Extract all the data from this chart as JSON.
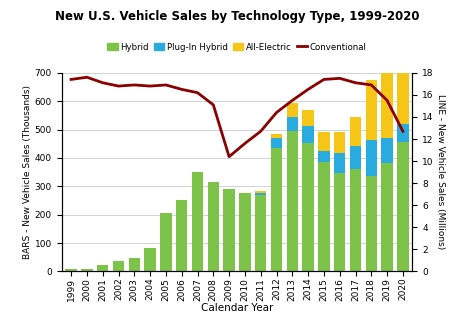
{
  "years": [
    1999,
    2000,
    2001,
    2002,
    2003,
    2004,
    2005,
    2006,
    2007,
    2008,
    2009,
    2010,
    2011,
    2012,
    2013,
    2014,
    2015,
    2016,
    2017,
    2018,
    2019,
    2020
  ],
  "hybrid": [
    9,
    9,
    21,
    35,
    47,
    84,
    205,
    250,
    350,
    315,
    290,
    275,
    268,
    434,
    495,
    452,
    384,
    346,
    360,
    338,
    381,
    456
  ],
  "plugin_hybrid": [
    0,
    0,
    0,
    0,
    0,
    0,
    0,
    0,
    0,
    0,
    0,
    0,
    7,
    38,
    49,
    59,
    42,
    72,
    83,
    125,
    88,
    65
  ],
  "all_electric": [
    0,
    0,
    0,
    0,
    0,
    0,
    0,
    0,
    0,
    0,
    0,
    0,
    10,
    14,
    48,
    57,
    66,
    75,
    103,
    210,
    236,
    240
  ],
  "conventional": [
    17.4,
    17.6,
    17.1,
    16.8,
    16.9,
    16.8,
    16.9,
    16.5,
    16.2,
    15.1,
    10.4,
    11.6,
    12.7,
    14.4,
    15.5,
    16.5,
    17.4,
    17.5,
    17.1,
    16.9,
    15.5,
    12.7
  ],
  "title": "New U.S. Vehicle Sales by Technology Type, 1999-2020",
  "ylabel_left": "BARS - New Vehicle Sales (Thousands)",
  "ylabel_right": "LINE - New Vehicle Sales (Millions)",
  "xlabel": "Calendar Year",
  "ylim_left": [
    0,
    700
  ],
  "ylim_right": [
    0,
    18
  ],
  "yticks_left": [
    0,
    100,
    200,
    300,
    400,
    500,
    600,
    700
  ],
  "yticks_right": [
    0,
    2,
    4,
    6,
    8,
    10,
    12,
    14,
    16,
    18
  ],
  "color_hybrid": "#7DC34A",
  "color_plugin": "#2AABDF",
  "color_electric": "#F5C518",
  "color_conventional": "#8B0000",
  "bg_color": "#FFFFFF",
  "grid_color": "#CCCCCC",
  "legend_labels": [
    "Hybrid",
    "Plug-In Hybrid",
    "All-Electric",
    "Conventional"
  ]
}
